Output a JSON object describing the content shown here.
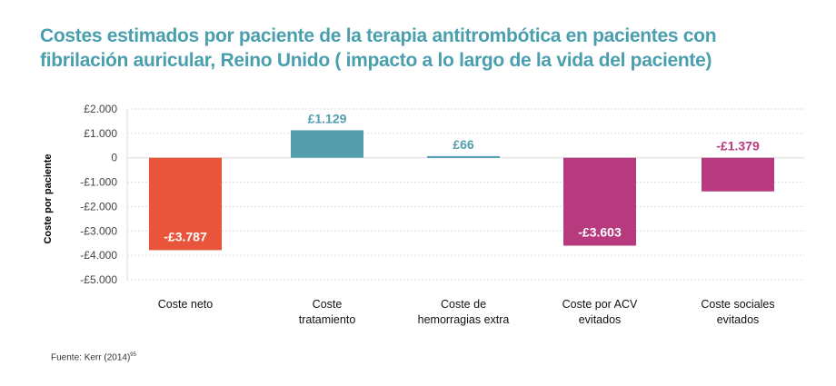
{
  "title_lines": [
    "Costes estimados por paciente de la terapia antitrombótica en pacientes con",
    "fibrilación auricular, Reino Unido ( impacto a lo largo de la vida del paciente)"
  ],
  "source": {
    "label": "Fuente:",
    "text": "Kerr (2014)",
    "ref": "95"
  },
  "colors": {
    "title": "#4a9fae",
    "grid": "#dddddd"
  },
  "chart_data": {
    "type": "bar",
    "ylabel": "Coste  por paciente",
    "ylim": [
      -5000,
      2000
    ],
    "yticks": [
      2000,
      1000,
      0,
      -1000,
      -2000,
      -3000,
      -4000,
      -5000
    ],
    "ytick_labels": [
      "£2.000",
      "£1.000",
      "0",
      "-£1.000",
      "-£2.000",
      "-£3.000",
      "-£4.000",
      "-£5.000"
    ],
    "grid": true,
    "categories": [
      [
        "Coste neto"
      ],
      [
        "Coste",
        "tratamiento"
      ],
      [
        "Coste  de",
        "hemorragias extra"
      ],
      [
        "Coste por ACV",
        "evitados"
      ],
      [
        "Coste sociales",
        "evitados"
      ]
    ],
    "values": [
      -3787,
      1129,
      66,
      -3603,
      -1379
    ],
    "data_labels": [
      "-£3.787",
      "£1.129",
      "£66",
      "-£3.603",
      "-£1.379"
    ],
    "colors": [
      "#e8553a",
      "#549ead",
      "#549ead",
      "#b83a7e",
      "#b83a7e"
    ]
  }
}
